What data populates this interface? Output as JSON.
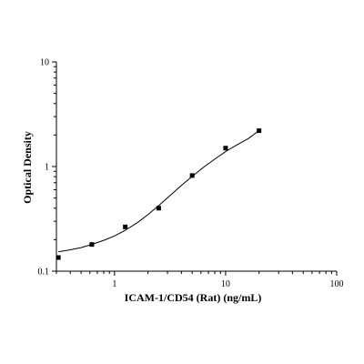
{
  "chart_data": {
    "type": "scatter",
    "title": "",
    "xlabel": "ICAM-1/CD54 (Rat) (ng/mL)",
    "ylabel": "Optical Density",
    "x_scale": "log",
    "y_scale": "log",
    "xlim": [
      0.3,
      100
    ],
    "ylim": [
      0.1,
      10
    ],
    "x_ticks": [
      {
        "value": 1,
        "label": "1"
      },
      {
        "value": 10,
        "label": "10"
      },
      {
        "value": 100,
        "label": "100"
      }
    ],
    "y_ticks": [
      {
        "value": 0.1,
        "label": "0.1"
      },
      {
        "value": 1,
        "label": "1"
      },
      {
        "value": 10,
        "label": "10"
      }
    ],
    "grid": false,
    "legend": "none",
    "series": [
      {
        "marker": "square",
        "x": [
          0.3125,
          0.625,
          1.25,
          2.5,
          5,
          10,
          20
        ],
        "y": [
          0.135,
          0.18,
          0.265,
          0.4,
          0.82,
          1.5,
          2.2
        ]
      }
    ],
    "fit_curve": {
      "x_range": [
        0.3125,
        20
      ],
      "points": [
        [
          0.3125,
          0.153
        ],
        [
          0.4,
          0.16
        ],
        [
          0.5,
          0.168
        ],
        [
          0.625,
          0.18
        ],
        [
          0.8,
          0.197
        ],
        [
          1.0,
          0.217
        ],
        [
          1.25,
          0.246
        ],
        [
          1.6,
          0.29
        ],
        [
          2.0,
          0.347
        ],
        [
          2.5,
          0.424
        ],
        [
          3.2,
          0.533
        ],
        [
          4.0,
          0.66
        ],
        [
          5.0,
          0.805
        ],
        [
          6.3,
          0.98
        ],
        [
          8.0,
          1.18
        ],
        [
          10.0,
          1.39
        ],
        [
          12.5,
          1.6
        ],
        [
          16.0,
          1.85
        ],
        [
          20.0,
          2.2
        ]
      ]
    },
    "colors": {
      "marker": "#000000",
      "line": "#000000",
      "axis": "#000000"
    }
  }
}
